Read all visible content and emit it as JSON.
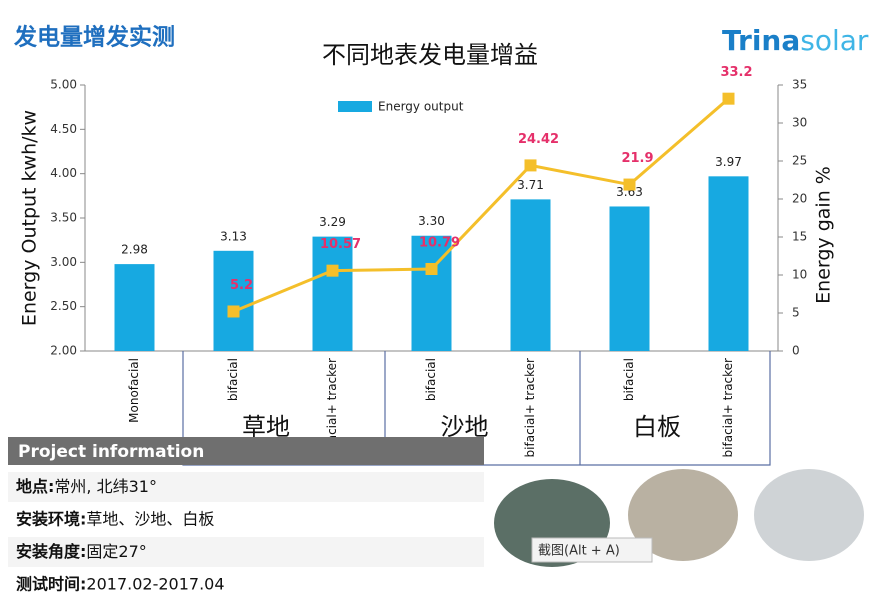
{
  "header": {
    "title": "发电量增发实测",
    "logo": {
      "brand": "Trina",
      "suffix": "solar"
    }
  },
  "chart_data": {
    "type": "bar",
    "title": "不同地表发电量增益",
    "ylabel": "Energy Output  kwh/kw",
    "y2label": "Energy gain  %",
    "categories": [
      "Monofacial",
      "bifacial",
      "bifacial+ tracker",
      "bifacial",
      "bifacial+ tracker",
      "bifacial",
      "bifacial+ tracker"
    ],
    "groups": [
      "草地",
      "沙地",
      "白板"
    ],
    "series": [
      {
        "name": "Energy output",
        "type": "bar",
        "color": "#17a9e1",
        "values": [
          2.98,
          3.13,
          3.29,
          3.3,
          3.71,
          3.63,
          3.97
        ],
        "value_labels": [
          "2.98",
          "3.13",
          "3.29",
          "3.30",
          "3.71",
          "3.63",
          "3.97"
        ]
      },
      {
        "type": "line",
        "axis": "y2",
        "color": "#f4bf2a",
        "label_color": "#e5306a",
        "values": [
          null,
          5.2,
          10.57,
          10.79,
          24.42,
          21.9,
          33.2
        ]
      }
    ],
    "ylim": [
      2,
      5
    ],
    "yticks": [
      {
        "value": 2,
        "label": "2.00"
      },
      {
        "value": 2.5,
        "label": "2.50"
      },
      {
        "value": 3,
        "label": "3.00"
      },
      {
        "value": 3.5,
        "label": "3.50"
      },
      {
        "value": 4,
        "label": "4.00"
      },
      {
        "value": 4.5,
        "label": "4.50"
      },
      {
        "value": 5,
        "label": "5.00"
      }
    ],
    "y2lim": [
      0,
      35
    ],
    "y2ticks": [
      0,
      5,
      10,
      15,
      20,
      25,
      30,
      35
    ],
    "legend": "top"
  },
  "project": {
    "title": "Project information",
    "rows": [
      {
        "label": "地点:",
        "value": "常州, 北纬31°"
      },
      {
        "label": "安装环境:",
        "value": "草地、沙地、白板"
      },
      {
        "label": "安装角度:",
        "value": "固定27°"
      },
      {
        "label": "测试时间:",
        "value": "2017.02-2017.04"
      }
    ]
  },
  "overlay": "截图(Alt + A)"
}
